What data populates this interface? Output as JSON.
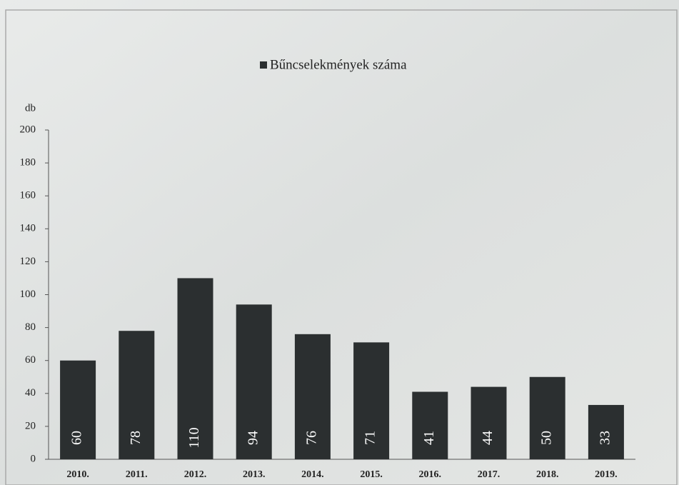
{
  "chart_data": {
    "type": "bar",
    "y_label": "db",
    "categories": [
      "2010.",
      "2011.",
      "2012.",
      "2013.",
      "2014.",
      "2015.",
      "2016.",
      "2017.",
      "2018.",
      "2019."
    ],
    "series": [
      {
        "name": "Bűncselekmények száma",
        "color": "#2b2f30",
        "values": [
          60,
          78,
          110,
          94,
          76,
          71,
          41,
          44,
          50,
          33
        ]
      }
    ],
    "ylim": [
      0,
      200
    ],
    "yticks": [
      0,
      20,
      40,
      60,
      80,
      100,
      120,
      140,
      160,
      180,
      200
    ],
    "legend": "top"
  }
}
